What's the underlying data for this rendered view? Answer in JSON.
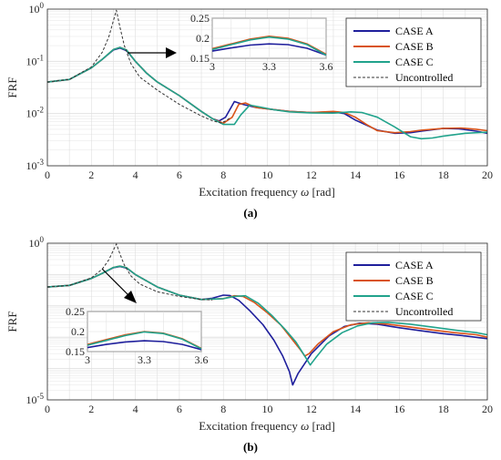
{
  "colors": {
    "case_a": "#1f1f9c",
    "case_b": "#d95319",
    "case_c": "#21a38c",
    "uncontrolled": "#333333",
    "grid": "#dedede",
    "arrow": "#000000"
  },
  "chart_data": [
    {
      "type": "line",
      "panel": "a",
      "caption": "(a)",
      "xlabel_main": "Excitation frequency ",
      "xlabel_symbol": "ω",
      "xlabel_unit": " [rad]",
      "ylabel": "FRF",
      "xlim": [
        0,
        20
      ],
      "ylim": [
        0.001,
        1
      ],
      "yscale": "log",
      "grid": true,
      "legend_position": "top-right",
      "x_ticks": [
        "0",
        "2",
        "4",
        "6",
        "8",
        "10",
        "12",
        "14",
        "16",
        "18",
        "20"
      ],
      "y_ticks": [
        {
          "base": "10",
          "exp": "0"
        },
        {
          "base": "10",
          "exp": "-1"
        },
        {
          "base": "10",
          "exp": "-2"
        },
        {
          "base": "10",
          "exp": "-3"
        }
      ],
      "series": [
        {
          "name": "CASE A",
          "style": "solid",
          "color_key": "case_a",
          "x": [
            0,
            1,
            2,
            2.5,
            3,
            3.3,
            3.6,
            4,
            4.5,
            5,
            6,
            7,
            7.5,
            7.8,
            8.1,
            8.5,
            8.9,
            9.5,
            10.2,
            11,
            12,
            13,
            13.5,
            14,
            15,
            15.8,
            16.5,
            17,
            18,
            18.7,
            19.5,
            20
          ],
          "y": [
            0.04,
            0.045,
            0.075,
            0.11,
            0.165,
            0.18,
            0.16,
            0.1,
            0.06,
            0.04,
            0.022,
            0.011,
            0.008,
            0.0072,
            0.0085,
            0.017,
            0.015,
            0.013,
            0.012,
            0.011,
            0.0105,
            0.0108,
            0.01,
            0.0075,
            0.0048,
            0.0042,
            0.0043,
            0.0046,
            0.0052,
            0.0051,
            0.0046,
            0.0042
          ]
        },
        {
          "name": "CASE B",
          "style": "solid",
          "color_key": "case_b",
          "x": [
            0,
            1,
            2,
            2.5,
            3,
            3.3,
            3.6,
            4,
            4.5,
            5,
            6,
            7,
            7.5,
            8,
            8.4,
            8.7,
            9,
            9.5,
            10.2,
            11,
            12,
            13,
            13.5,
            14,
            14.5,
            15,
            15.8,
            16.5,
            17,
            18,
            18.8,
            19.5,
            20
          ],
          "y": [
            0.04,
            0.045,
            0.075,
            0.11,
            0.168,
            0.185,
            0.165,
            0.1,
            0.06,
            0.04,
            0.022,
            0.011,
            0.008,
            0.0065,
            0.0085,
            0.015,
            0.016,
            0.013,
            0.012,
            0.011,
            0.0105,
            0.011,
            0.0105,
            0.0085,
            0.0062,
            0.0047,
            0.0043,
            0.0045,
            0.0048,
            0.0052,
            0.0053,
            0.005,
            0.0047
          ]
        },
        {
          "name": "CASE C",
          "style": "solid",
          "color_key": "case_c",
          "x": [
            0,
            1,
            2,
            2.5,
            3,
            3.3,
            3.6,
            4,
            4.5,
            5,
            6,
            7,
            7.5,
            8,
            8.5,
            8.8,
            9.2,
            9.8,
            10.3,
            11,
            12,
            13,
            13.8,
            14.3,
            15,
            15.8,
            16.5,
            17,
            17.5,
            18,
            19,
            20
          ],
          "y": [
            0.04,
            0.045,
            0.075,
            0.11,
            0.168,
            0.185,
            0.165,
            0.1,
            0.06,
            0.04,
            0.022,
            0.011,
            0.008,
            0.0062,
            0.0062,
            0.0095,
            0.0145,
            0.013,
            0.0118,
            0.0108,
            0.0103,
            0.0102,
            0.0108,
            0.0105,
            0.0085,
            0.0055,
            0.0036,
            0.0033,
            0.0034,
            0.0037,
            0.0042,
            0.0044
          ]
        },
        {
          "name": "Uncontrolled",
          "style": "dashed",
          "color_key": "uncontrolled",
          "x": [
            0,
            1,
            2,
            2.5,
            2.8,
            3.0,
            3.14,
            3.3,
            3.5,
            3.8,
            4.2,
            5,
            6,
            7,
            7.5,
            7.9,
            8.1,
            8.3
          ],
          "y": [
            0.04,
            0.045,
            0.078,
            0.15,
            0.3,
            0.6,
            0.95,
            0.45,
            0.2,
            0.09,
            0.05,
            0.028,
            0.015,
            0.009,
            0.0073,
            0.0066,
            0.0072,
            0.0082
          ]
        }
      ],
      "inset": {
        "xlim": [
          3,
          3.6
        ],
        "ylim": [
          0.15,
          0.25
        ],
        "x_ticks": [
          "3",
          "3.3",
          "3.6"
        ],
        "y_ticks": [
          "0.15",
          "0.2",
          "0.25"
        ],
        "x_tick_values": [
          3,
          3.3,
          3.6
        ],
        "y_tick_values": [
          0.15,
          0.2,
          0.25
        ],
        "series": [
          {
            "color_key": "case_a",
            "x": [
              3.0,
              3.1,
              3.2,
              3.3,
              3.4,
              3.5,
              3.6
            ],
            "y": [
              0.168,
              0.176,
              0.183,
              0.186,
              0.184,
              0.175,
              0.158
            ]
          },
          {
            "color_key": "case_b",
            "x": [
              3.0,
              3.1,
              3.2,
              3.3,
              3.4,
              3.5,
              3.6
            ],
            "y": [
              0.174,
              0.186,
              0.198,
              0.205,
              0.2,
              0.186,
              0.16
            ]
          },
          {
            "color_key": "case_c",
            "x": [
              3.0,
              3.1,
              3.2,
              3.3,
              3.4,
              3.5,
              3.6
            ],
            "y": [
              0.172,
              0.184,
              0.196,
              0.203,
              0.198,
              0.184,
              0.158
            ]
          }
        ]
      }
    },
    {
      "type": "line",
      "panel": "b",
      "caption": "(b)",
      "xlabel_main": "Excitation frequency ",
      "xlabel_symbol": "ω",
      "xlabel_unit": " [rad]",
      "ylabel": "FRF",
      "xlim": [
        0,
        20
      ],
      "ylim": [
        1e-05,
        1
      ],
      "yscale": "log",
      "grid": true,
      "legend_position": "top-right",
      "x_ticks": [
        "0",
        "2",
        "4",
        "6",
        "8",
        "10",
        "12",
        "14",
        "16",
        "18",
        "20"
      ],
      "y_ticks": [
        {
          "base": "10",
          "exp": "0"
        },
        {
          "base": "10",
          "exp": "-5"
        }
      ],
      "series": [
        {
          "name": "CASE A",
          "style": "solid",
          "color_key": "case_a",
          "x": [
            0,
            1,
            2,
            2.5,
            3,
            3.3,
            3.6,
            4,
            5,
            6,
            7,
            7.5,
            8,
            8.3,
            8.7,
            9.2,
            9.8,
            10.3,
            10.7,
            11,
            11.15,
            11.4,
            12,
            12.8,
            13.5,
            14.2,
            15,
            16,
            17,
            18,
            19,
            20
          ],
          "y": [
            0.04,
            0.045,
            0.075,
            0.11,
            0.165,
            0.18,
            0.16,
            0.1,
            0.04,
            0.022,
            0.016,
            0.0175,
            0.022,
            0.0215,
            0.015,
            0.007,
            0.0025,
            0.0008,
            0.00025,
            8e-05,
            3e-05,
            7e-05,
            0.0003,
            0.0011,
            0.0022,
            0.0028,
            0.0026,
            0.002,
            0.0016,
            0.0013,
            0.0011,
            0.0009
          ]
        },
        {
          "name": "CASE B",
          "style": "solid",
          "color_key": "case_b",
          "x": [
            0,
            1,
            2,
            2.5,
            3,
            3.3,
            3.6,
            4,
            5,
            6,
            7,
            8,
            8.5,
            8.9,
            9.4,
            10,
            10.6,
            11.1,
            11.5,
            11.7,
            11.9,
            12.3,
            13,
            13.8,
            14.6,
            15.5,
            16.5,
            17.5,
            18.5,
            19.5,
            20
          ],
          "y": [
            0.04,
            0.045,
            0.075,
            0.11,
            0.168,
            0.185,
            0.165,
            0.1,
            0.04,
            0.022,
            0.016,
            0.017,
            0.021,
            0.02,
            0.013,
            0.006,
            0.0025,
            0.0009,
            0.0004,
            0.00025,
            0.0003,
            0.0006,
            0.0015,
            0.0025,
            0.0029,
            0.0026,
            0.0021,
            0.0017,
            0.0014,
            0.0012,
            0.001
          ]
        },
        {
          "name": "CASE C",
          "style": "solid",
          "color_key": "case_c",
          "x": [
            0,
            1,
            2,
            2.5,
            3,
            3.3,
            3.6,
            4,
            5,
            6,
            7,
            8,
            8.5,
            9,
            9.6,
            10.2,
            10.8,
            11.3,
            11.7,
            11.95,
            12.2,
            12.7,
            13.4,
            14.1,
            14.8,
            15.5,
            16.5,
            17.5,
            18.5,
            19.5,
            20
          ],
          "y": [
            0.04,
            0.045,
            0.075,
            0.11,
            0.168,
            0.185,
            0.165,
            0.1,
            0.04,
            0.022,
            0.016,
            0.017,
            0.02,
            0.021,
            0.012,
            0.005,
            0.0018,
            0.0007,
            0.00025,
            0.00013,
            0.00022,
            0.0006,
            0.0014,
            0.0023,
            0.0029,
            0.003,
            0.0026,
            0.0021,
            0.0017,
            0.0014,
            0.0012
          ]
        },
        {
          "name": "Uncontrolled",
          "style": "dashed",
          "color_key": "uncontrolled",
          "x": [
            0,
            1,
            2,
            2.5,
            2.8,
            3.0,
            3.14,
            3.3,
            3.5,
            3.8,
            4.2,
            5,
            6,
            7,
            7.5
          ],
          "y": [
            0.04,
            0.045,
            0.078,
            0.15,
            0.3,
            0.6,
            0.95,
            0.45,
            0.2,
            0.09,
            0.05,
            0.028,
            0.02,
            0.016,
            0.0155
          ]
        }
      ],
      "inset": {
        "xlim": [
          3,
          3.6
        ],
        "ylim": [
          0.15,
          0.25
        ],
        "x_ticks": [
          "3",
          "3.3",
          "3.6"
        ],
        "y_ticks": [
          "0.15",
          "0.2",
          "0.25"
        ],
        "x_tick_values": [
          3,
          3.3,
          3.6
        ],
        "y_tick_values": [
          0.15,
          0.2,
          0.25
        ],
        "series": [
          {
            "color_key": "case_a",
            "x": [
              3.0,
              3.1,
              3.2,
              3.3,
              3.4,
              3.5,
              3.6
            ],
            "y": [
              0.16,
              0.168,
              0.174,
              0.177,
              0.175,
              0.168,
              0.155
            ]
          },
          {
            "color_key": "case_b",
            "x": [
              3.0,
              3.1,
              3.2,
              3.3,
              3.4,
              3.5,
              3.6
            ],
            "y": [
              0.168,
              0.18,
              0.192,
              0.2,
              0.196,
              0.182,
              0.158
            ]
          },
          {
            "color_key": "case_c",
            "x": [
              3.0,
              3.1,
              3.2,
              3.3,
              3.4,
              3.5,
              3.6
            ],
            "y": [
              0.166,
              0.178,
              0.19,
              0.199,
              0.195,
              0.181,
              0.157
            ]
          }
        ]
      }
    }
  ]
}
